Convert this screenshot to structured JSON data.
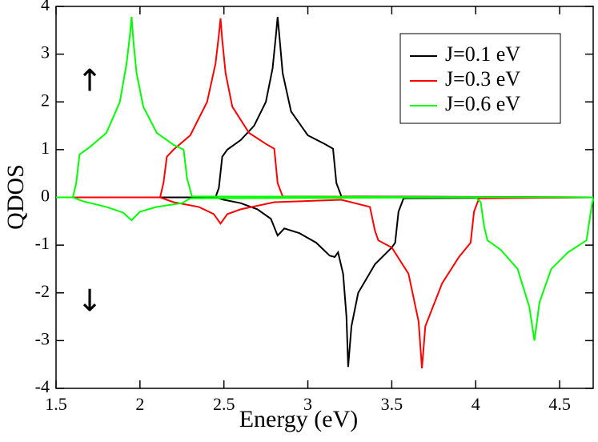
{
  "chart_data": {
    "type": "line",
    "xlabel": "Energy (eV)",
    "ylabel": "QDOS",
    "xlim": [
      1.5,
      4.7
    ],
    "ylim": [
      -4,
      4
    ],
    "xticks": [
      1.5,
      2,
      2.5,
      3,
      3.5,
      4,
      4.5
    ],
    "yticks": [
      -4,
      -3,
      -2,
      -1,
      0,
      1,
      2,
      3,
      4
    ],
    "legend": "upper right",
    "annotations": [
      "↑",
      "↓"
    ],
    "series": [
      {
        "name": "J=0.1 eV",
        "color": "#000000",
        "x": [
          1.5,
          2.45,
          2.47,
          2.49,
          2.52,
          2.6,
          2.68,
          2.75,
          2.79,
          2.81,
          2.82,
          2.83,
          2.85,
          2.9,
          3.0,
          3.1,
          3.15,
          3.17,
          3.2,
          4.7
        ],
        "values": [
          0,
          0,
          0.2,
          0.85,
          1.0,
          1.2,
          1.5,
          2.0,
          2.7,
          3.4,
          3.78,
          3.4,
          2.6,
          1.8,
          1.3,
          1.12,
          1.02,
          0.3,
          0.02,
          0
        ],
        "x_down": [
          1.5,
          2.45,
          2.5,
          2.6,
          2.7,
          2.78,
          2.82,
          2.86,
          2.95,
          3.05,
          3.13,
          3.16,
          3.18,
          3.21,
          3.23,
          3.24,
          3.26,
          3.3,
          3.4,
          3.5,
          3.52,
          3.54,
          3.57,
          4.7
        ],
        "values_down": [
          0,
          0,
          -0.05,
          -0.12,
          -0.25,
          -0.45,
          -0.8,
          -0.65,
          -0.75,
          -0.95,
          -1.22,
          -1.25,
          -1.15,
          -1.6,
          -2.5,
          -3.55,
          -2.7,
          -2.0,
          -1.4,
          -1.05,
          -0.95,
          -0.3,
          -0.02,
          0
        ]
      },
      {
        "name": "J=0.3 eV",
        "color": "#ff0000",
        "x": [
          1.5,
          2.12,
          2.14,
          2.16,
          2.2,
          2.3,
          2.4,
          2.45,
          2.47,
          2.48,
          2.49,
          2.51,
          2.55,
          2.65,
          2.75,
          2.8,
          2.82,
          2.85,
          4.7
        ],
        "values": [
          0,
          0,
          0.3,
          0.85,
          1.0,
          1.3,
          2.0,
          2.8,
          3.4,
          3.75,
          3.3,
          2.6,
          1.9,
          1.35,
          1.12,
          1.02,
          0.3,
          0.02,
          0
        ],
        "x_down": [
          1.5,
          2.12,
          2.2,
          2.35,
          2.44,
          2.48,
          2.52,
          2.6,
          2.8,
          3.2,
          3.37,
          3.4,
          3.42,
          3.5,
          3.6,
          3.66,
          3.68,
          3.7,
          3.8,
          3.9,
          3.97,
          3.99,
          4.02,
          4.7
        ],
        "values_down": [
          0,
          0,
          -0.1,
          -0.2,
          -0.35,
          -0.55,
          -0.35,
          -0.25,
          -0.1,
          -0.05,
          -0.2,
          -0.7,
          -0.9,
          -1.05,
          -1.6,
          -2.6,
          -3.58,
          -2.7,
          -1.8,
          -1.25,
          -0.95,
          -0.3,
          -0.02,
          0
        ]
      },
      {
        "name": "J=0.6 eV",
        "color": "#00ff00",
        "x": [
          1.5,
          1.6,
          1.62,
          1.64,
          1.7,
          1.8,
          1.88,
          1.92,
          1.94,
          1.95,
          1.96,
          1.98,
          2.02,
          2.1,
          2.2,
          2.26,
          2.28,
          2.31,
          4.7
        ],
        "values": [
          0,
          0,
          0.3,
          0.9,
          1.05,
          1.35,
          2.0,
          2.8,
          3.4,
          3.78,
          3.3,
          2.6,
          1.9,
          1.35,
          1.1,
          1.0,
          0.4,
          0.02,
          0
        ],
        "x_down": [
          1.5,
          1.6,
          1.66,
          1.8,
          1.9,
          1.95,
          2.0,
          2.1,
          2.25,
          2.3,
          4.0,
          4.03,
          4.05,
          4.07,
          4.15,
          4.25,
          4.32,
          4.35,
          4.38,
          4.45,
          4.55,
          4.66,
          4.69,
          4.7
        ],
        "values_down": [
          0,
          0,
          -0.08,
          -0.2,
          -0.32,
          -0.48,
          -0.3,
          -0.2,
          -0.12,
          -0.02,
          0,
          -0.1,
          -0.6,
          -0.9,
          -1.1,
          -1.5,
          -2.3,
          -3.0,
          -2.2,
          -1.5,
          -1.15,
          -0.9,
          -0.2,
          -0.02
        ]
      }
    ]
  }
}
